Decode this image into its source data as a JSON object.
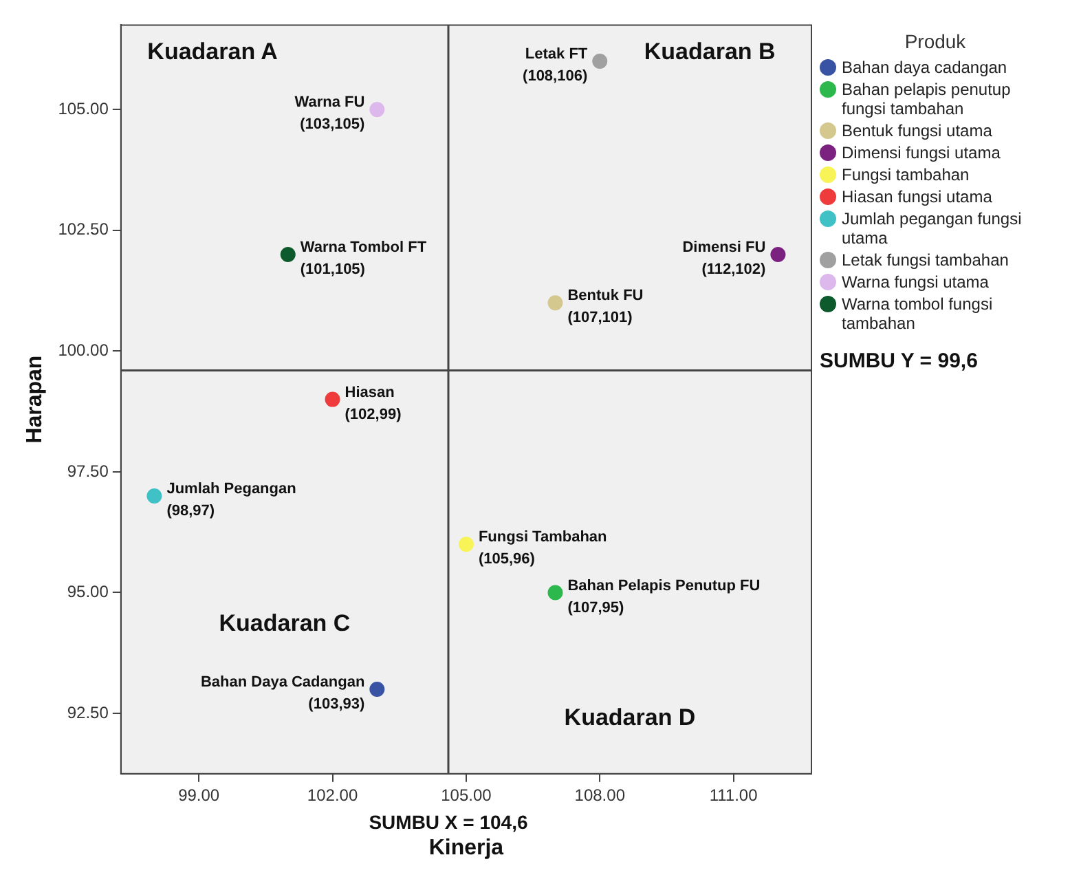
{
  "chart_data": {
    "type": "scatter",
    "xlabel": "Kinerja",
    "ylabel": "Harapan",
    "legend_title": "Produk",
    "legend": "right",
    "marker": "circle",
    "grid": false,
    "xlim": [
      97.25,
      112.75
    ],
    "xticks": [
      {
        "value": 99,
        "label": "99.00"
      },
      {
        "value": 102,
        "label": "102.00"
      },
      {
        "value": 105,
        "label": "105.00"
      },
      {
        "value": 108,
        "label": "108.00"
      },
      {
        "value": 111,
        "label": "111.00"
      }
    ],
    "ylim": [
      91.25,
      106.75
    ],
    "yticks": [
      {
        "value": 92.5,
        "label": "92.50"
      },
      {
        "value": 95,
        "label": "95.00"
      },
      {
        "value": 97.5,
        "label": "97.50"
      },
      {
        "value": 100,
        "label": "100.00"
      },
      {
        "value": 102.5,
        "label": "102.50"
      },
      {
        "value": 105,
        "label": "105.00"
      }
    ],
    "series": [
      {
        "name": "Bahan daya cadangan",
        "color": "#3953a4",
        "x": [
          103
        ],
        "values": [
          93
        ]
      },
      {
        "name": "Bahan pelapis penutup fungsi tambahan",
        "color": "#2db84d",
        "x": [
          107
        ],
        "values": [
          95
        ]
      },
      {
        "name": "Bentuk fungsi utama",
        "color": "#d4c88f",
        "x": [
          107
        ],
        "values": [
          101
        ]
      },
      {
        "name": "Dimensi fungsi utama",
        "color": "#7b2180",
        "x": [
          112
        ],
        "values": [
          102
        ]
      },
      {
        "name": "Fungsi tambahan",
        "color": "#f8f356",
        "x": [
          105
        ],
        "values": [
          96
        ]
      },
      {
        "name": "Hiasan fungsi utama",
        "color": "#ef3b3b",
        "x": [
          102
        ],
        "values": [
          99
        ]
      },
      {
        "name": "Jumlah pegangan fungsi utama",
        "color": "#3fc1c6",
        "x": [
          98
        ],
        "values": [
          97
        ]
      },
      {
        "name": "Letak fungsi tambahan",
        "color": "#a0a0a0",
        "x": [
          108
        ],
        "values": [
          106
        ]
      },
      {
        "name": "Warna fungsi utama",
        "color": "#dcb8ec",
        "x": [
          103
        ],
        "values": [
          105
        ]
      },
      {
        "name": "Warna tombol fungsi tambahan",
        "color": "#0d5a2c",
        "x": [
          101
        ],
        "values": [
          102
        ]
      }
    ],
    "ref_lines": [
      {
        "axis": "x",
        "value": 104.6,
        "label": "SUMBU X = 104,6",
        "color": "#444444"
      },
      {
        "axis": "y",
        "value": 99.6,
        "label": "SUMBU Y = 99,6",
        "color": "#444444"
      }
    ],
    "annotations": [
      "Kuadaran A",
      "Kuadaran B",
      "Kuadaran C",
      "Kuadaran D",
      {
        "text": "Bahan Daya Cadangan\n(103,93)",
        "x": 103,
        "y": 93
      },
      {
        "text": "Bahan Pelapis Penutup FU\n(107,95)",
        "x": 107,
        "y": 95
      },
      {
        "text": "Bentuk FU\n(107,101)",
        "x": 107,
        "y": 101
      },
      {
        "text": "Dimensi FU\n(112,102)",
        "x": 112,
        "y": 102
      },
      {
        "text": "Fungsi Tambahan\n(105,96)",
        "x": 105,
        "y": 96
      },
      {
        "text": "Hiasan\n(102,99)",
        "x": 102,
        "y": 99
      },
      {
        "text": "Jumlah Pegangan\n(98,97)",
        "x": 98,
        "y": 97
      },
      {
        "text": "Letak FT\n(108,106)",
        "x": 108,
        "y": 106
      },
      {
        "text": "Warna FU\n(103,105)",
        "x": 103,
        "y": 105
      },
      {
        "text": "Warna Tombol FT\n(101,105)",
        "x": 101,
        "y": 102
      }
    ]
  }
}
